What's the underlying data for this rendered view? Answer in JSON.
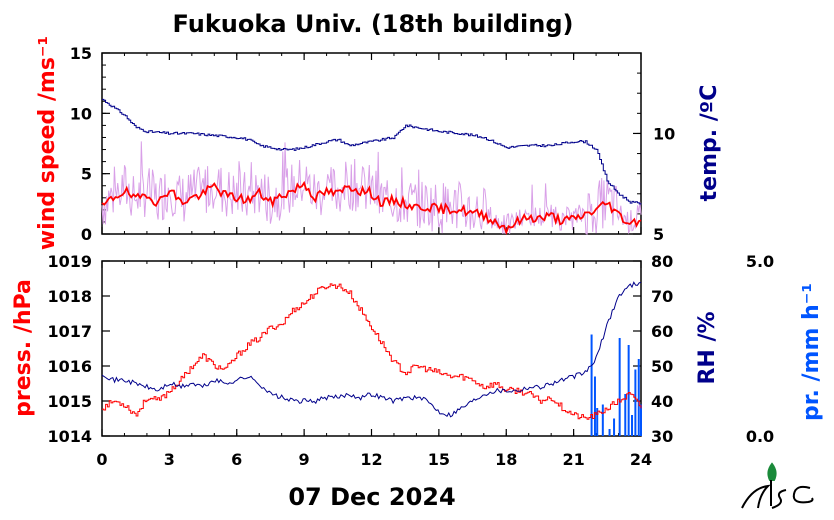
{
  "title": "Fukuoka Univ. (18th building)",
  "date_label": "07 Dec 2024",
  "colors": {
    "wind_raw": "#d9a0e8",
    "wind_avg": "#ff0000",
    "temp": "#00008b",
    "pressure": "#ff0000",
    "rh": "#00008b",
    "precip": "#0055ff"
  },
  "logo_name": "fukuoka-univ-logo",
  "chart_data": [
    {
      "type": "line",
      "panel": "top",
      "xlim": [
        0,
        24
      ],
      "x_ticks": [
        "0",
        "3",
        "6",
        "9",
        "12",
        "15",
        "18",
        "21",
        "24"
      ],
      "left_axis": {
        "label": "wind speed /ms⁻¹",
        "ylim": [
          0,
          15
        ],
        "ticks": [
          "0",
          "5",
          "10",
          "15"
        ]
      },
      "right_axis": {
        "label": "temp. /ºC",
        "ylim": [
          5,
          14
        ],
        "ticks": [
          "5",
          "10"
        ]
      },
      "series": [
        {
          "key": "wind_avg",
          "axis": "left",
          "x": [
            0,
            0.5,
            1,
            1.5,
            2,
            2.5,
            3,
            3.5,
            4,
            4.5,
            5,
            5.5,
            6,
            6.5,
            7,
            7.5,
            8,
            8.5,
            9,
            9.5,
            10,
            10.5,
            11,
            11.5,
            12,
            12.5,
            13,
            13.5,
            14,
            14.5,
            15,
            15.5,
            16,
            16.5,
            17,
            17.5,
            18,
            18.5,
            19,
            19.5,
            20,
            20.5,
            21,
            21.5,
            22,
            22.5,
            23,
            23.5,
            24
          ],
          "values": [
            2.2,
            3.0,
            3.6,
            2.8,
            3.4,
            2.5,
            3.8,
            2.6,
            3.0,
            3.3,
            4.0,
            3.2,
            3.0,
            2.8,
            3.4,
            2.6,
            3.2,
            3.6,
            4.2,
            3.0,
            3.5,
            3.3,
            4.0,
            3.6,
            3.4,
            2.5,
            2.8,
            2.5,
            2.2,
            2.3,
            2.0,
            2.1,
            2.0,
            1.7,
            1.6,
            1.0,
            0.5,
            1.0,
            1.4,
            1.3,
            1.5,
            1.1,
            1.2,
            1.6,
            2.0,
            2.6,
            1.6,
            0.9,
            1.2
          ]
        },
        {
          "key": "temp",
          "axis": "right",
          "x": [
            0,
            0.5,
            1,
            1.5,
            2,
            3,
            4,
            5,
            6,
            6.5,
            7,
            8,
            8.5,
            9,
            10,
            10.5,
            11,
            12,
            13,
            13.5,
            14,
            15,
            16,
            17,
            18,
            19,
            20,
            21,
            21.5,
            22,
            22.5,
            23,
            23.5,
            24
          ],
          "values": [
            11.7,
            11.3,
            10.9,
            10.3,
            10.1,
            10.0,
            10.0,
            9.9,
            9.8,
            9.7,
            9.4,
            9.2,
            9.2,
            9.3,
            9.6,
            9.7,
            9.4,
            9.6,
            9.8,
            10.4,
            10.3,
            10.1,
            10.0,
            9.8,
            9.3,
            9.4,
            9.4,
            9.6,
            9.6,
            9.2,
            7.6,
            7.0,
            6.6,
            6.5
          ]
        }
      ]
    },
    {
      "type": "line",
      "panel": "bottom",
      "xlim": [
        0,
        24
      ],
      "x_ticks": [
        "0",
        "3",
        "6",
        "9",
        "12",
        "15",
        "18",
        "21",
        "24"
      ],
      "xlabel": "07 Dec 2024",
      "left_axis": {
        "label": "press. /hPa",
        "ylim": [
          1014,
          1019
        ],
        "ticks": [
          "1014",
          "1015",
          "1016",
          "1017",
          "1018",
          "1019"
        ]
      },
      "right_axis": {
        "label": "RH /%",
        "ylim": [
          30,
          80
        ],
        "ticks": [
          "30",
          "40",
          "50",
          "60",
          "70",
          "80"
        ]
      },
      "far_right_axis": {
        "label": "pr. /mm h⁻¹",
        "ylim": [
          0.0,
          5.0
        ],
        "ticks": [
          "0.0",
          "5.0"
        ]
      },
      "series": [
        {
          "key": "pressure",
          "axis": "left",
          "x": [
            0,
            0.5,
            1,
            1.5,
            2,
            2.5,
            3,
            3.5,
            4,
            4.5,
            5,
            5.5,
            6,
            6.5,
            7,
            7.5,
            8,
            8.5,
            9,
            9.5,
            10,
            10.5,
            11,
            11.5,
            12,
            12.5,
            13,
            13.5,
            14,
            14.5,
            15,
            15.5,
            16,
            16.5,
            17,
            17.5,
            18,
            18.5,
            19,
            19.5,
            20,
            20.5,
            21,
            21.5,
            22,
            22.5,
            23,
            23.5,
            24
          ],
          "values": [
            1014.8,
            1015.0,
            1014.9,
            1014.6,
            1015.1,
            1015.0,
            1015.3,
            1015.6,
            1016.0,
            1016.3,
            1016.0,
            1015.9,
            1016.3,
            1016.6,
            1016.8,
            1017.1,
            1017.2,
            1017.6,
            1017.8,
            1018.1,
            1018.3,
            1018.3,
            1018.1,
            1017.6,
            1017.1,
            1016.6,
            1016.1,
            1015.8,
            1016.0,
            1015.9,
            1015.8,
            1015.7,
            1015.7,
            1015.6,
            1015.4,
            1015.5,
            1015.3,
            1015.3,
            1015.2,
            1015.0,
            1015.1,
            1014.8,
            1014.6,
            1014.5,
            1014.6,
            1014.8,
            1015.0,
            1015.2,
            1014.8
          ]
        },
        {
          "key": "rh",
          "axis": "right",
          "x": [
            0,
            0.5,
            1,
            1.5,
            2,
            2.5,
            3,
            3.5,
            4,
            4.5,
            5,
            5.5,
            6,
            6.5,
            7,
            7.5,
            8,
            8.5,
            9,
            9.5,
            10,
            10.5,
            11,
            11.5,
            12,
            12.5,
            13,
            13.5,
            14,
            14.5,
            15,
            15.5,
            16,
            16.5,
            17,
            17.5,
            18,
            18.5,
            19,
            19.5,
            20,
            20.5,
            21,
            21.5,
            22,
            22.5,
            23,
            23.5,
            24
          ],
          "values": [
            48,
            46,
            46,
            45,
            44,
            43,
            45,
            44,
            45,
            44,
            46,
            45,
            46,
            47,
            45,
            42,
            41,
            40,
            40,
            40,
            41,
            41,
            42,
            41,
            42,
            41,
            40,
            41,
            41,
            40,
            37,
            36,
            38,
            40,
            42,
            43,
            43,
            43,
            44,
            44,
            45,
            46,
            47,
            48,
            52,
            62,
            70,
            73,
            74
          ]
        },
        {
          "key": "precip",
          "axis": "far_right",
          "type": "bar",
          "x": [
            21.8,
            21.95,
            22.05,
            22.3,
            22.6,
            22.8,
            23.05,
            23.3,
            23.45,
            23.6,
            23.75,
            23.9,
            24.0
          ],
          "values": [
            2.9,
            1.7,
            0.8,
            0.9,
            0.2,
            0.5,
            2.8,
            1.2,
            2.6,
            0.6,
            1.9,
            2.2,
            0.9
          ]
        }
      ]
    }
  ]
}
